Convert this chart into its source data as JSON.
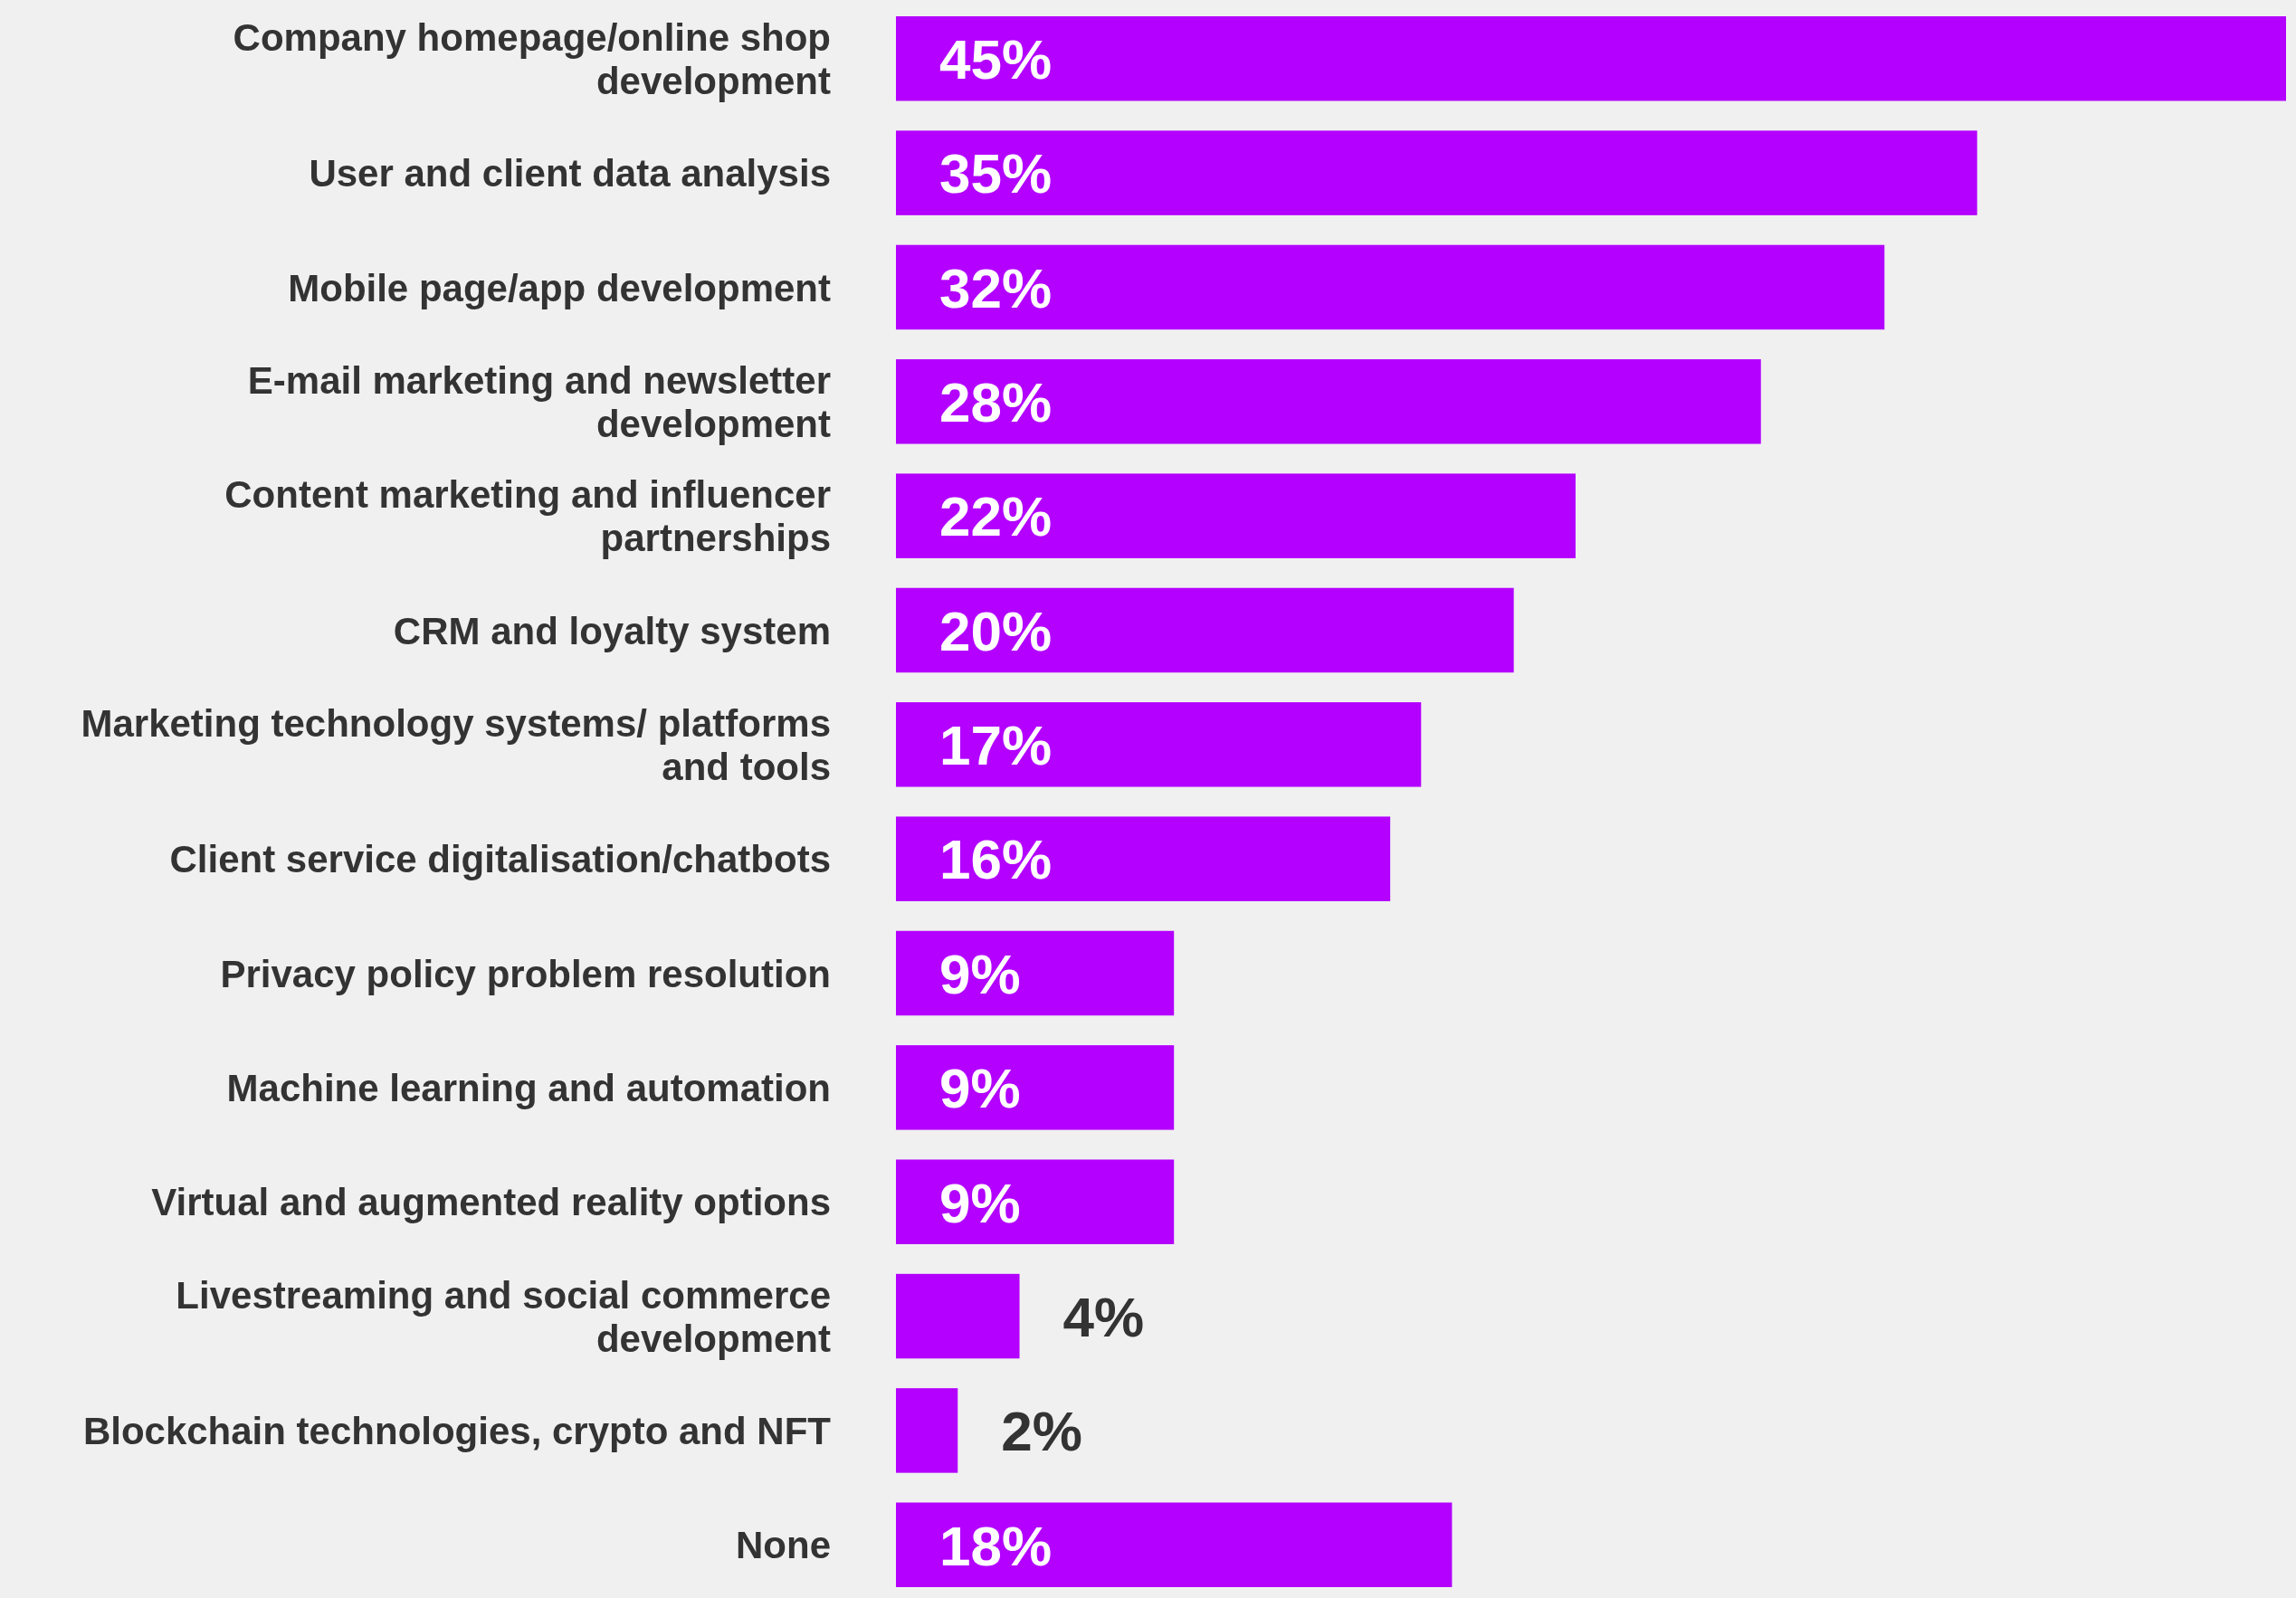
{
  "chart_data": {
    "type": "bar",
    "orientation": "horizontal",
    "categories": [
      "Company homepage/online shop development",
      "User and client data analysis",
      "Mobile page/app development",
      "E-mail marketing and newsletter development",
      "Content marketing and influencer partnerships",
      "CRM and loyalty system",
      "Marketing technology systems/ platforms and tools",
      "Client service digitalisation/chatbots",
      "Privacy policy problem resolution",
      "Machine learning and automation",
      "Virtual and augmented reality options",
      "Livestreaming and social commerce development",
      "Blockchain technologies, crypto and NFT",
      "None"
    ],
    "values": [
      45,
      35,
      32,
      28,
      22,
      20,
      17,
      16,
      9,
      9,
      9,
      4,
      2,
      18
    ],
    "value_labels": [
      "45%",
      "35%",
      "32%",
      "28%",
      "22%",
      "20%",
      "17%",
      "16%",
      "9%",
      "9%",
      "9%",
      "4%",
      "2%",
      "18%"
    ],
    "color": "#b300ff"
  }
}
